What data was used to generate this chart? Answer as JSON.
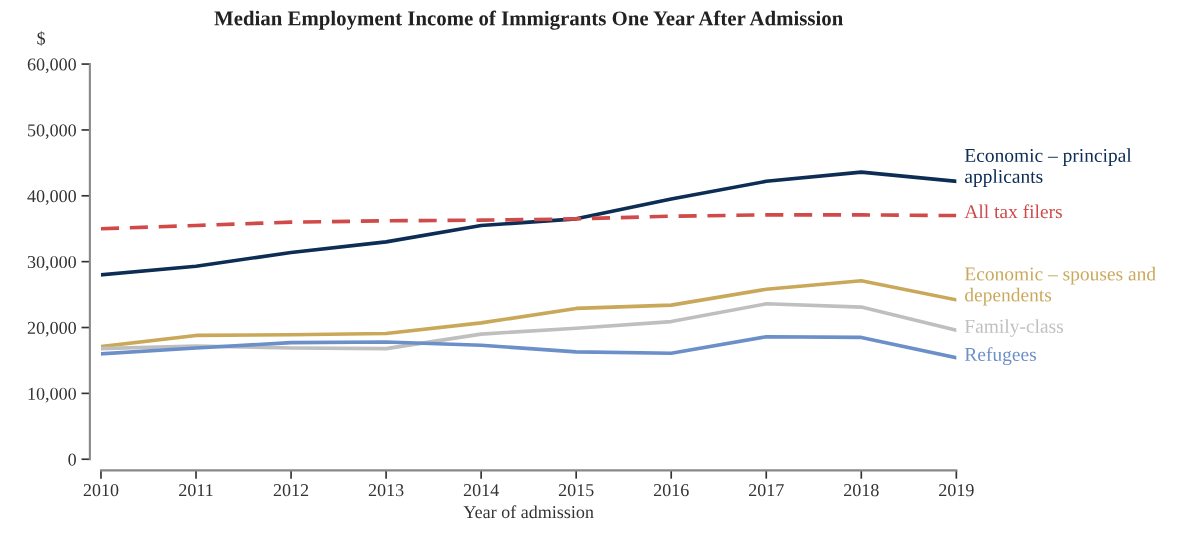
{
  "chart_data": {
    "type": "line",
    "title": "Median Employment Income of Immigrants One Year After Admission",
    "ylabel": "$",
    "xlabel": "Year of admission",
    "x": [
      2010,
      2011,
      2012,
      2013,
      2014,
      2015,
      2016,
      2017,
      2018,
      2019
    ],
    "xlim": [
      2010,
      2019
    ],
    "xticks": [
      2010,
      2011,
      2012,
      2013,
      2014,
      2015,
      2016,
      2017,
      2018,
      2019
    ],
    "ylim": [
      0,
      60000
    ],
    "yticks": [
      {
        "value": 0,
        "label": "0"
      },
      {
        "value": 10000,
        "label": "10,000"
      },
      {
        "value": 20000,
        "label": "20,000"
      },
      {
        "value": 30000,
        "label": "30,000"
      },
      {
        "value": 40000,
        "label": "40,000"
      },
      {
        "value": 50000,
        "label": "50,000"
      },
      {
        "value": 60000,
        "label": "60,000"
      }
    ],
    "grid": false,
    "legend": false,
    "marker": "none",
    "series": [
      {
        "name": "Economic – principal\napplicants",
        "color": "#0d2d55",
        "line_style": "solid",
        "values": [
          28000,
          29300,
          31400,
          33000,
          35500,
          36500,
          39500,
          42200,
          43600,
          42200
        ]
      },
      {
        "name": "All tax filers",
        "color": "#d04a4a",
        "line_style": "dashed",
        "values": [
          35000,
          35500,
          36000,
          36200,
          36300,
          36500,
          36900,
          37100,
          37100,
          37000
        ]
      },
      {
        "name": "Economic – spouses and\ndependents",
        "color": "#c9a85a",
        "line_style": "solid",
        "values": [
          17100,
          18800,
          18900,
          19100,
          20700,
          22900,
          23400,
          25800,
          27100,
          24200
        ]
      },
      {
        "name": "Family-class",
        "color": "#bfbfbf",
        "line_style": "solid",
        "values": [
          16800,
          17200,
          16900,
          16800,
          19000,
          19900,
          20900,
          23600,
          23100,
          19600
        ]
      },
      {
        "name": "Refugees",
        "color": "#6b8fc9",
        "line_style": "solid",
        "values": [
          16000,
          16900,
          17700,
          17800,
          17300,
          16300,
          16100,
          18600,
          18500,
          15400
        ]
      }
    ]
  }
}
